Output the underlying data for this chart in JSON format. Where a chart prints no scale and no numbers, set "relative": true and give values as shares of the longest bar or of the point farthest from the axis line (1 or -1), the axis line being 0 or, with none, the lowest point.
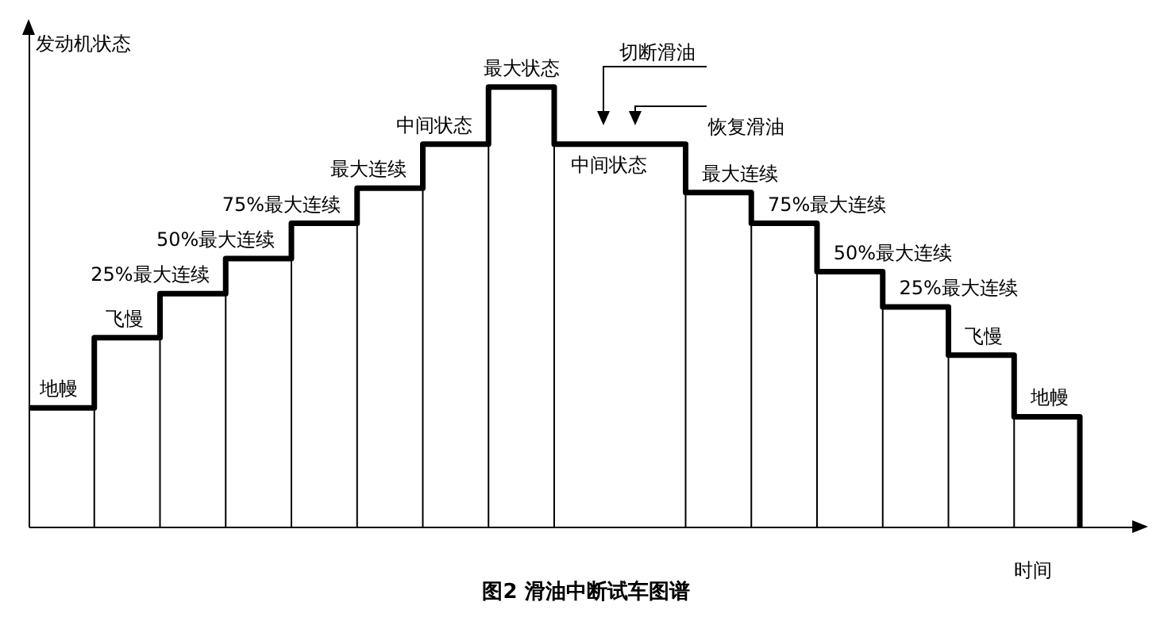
{
  "chart_data": {
    "type": "step",
    "relative": true,
    "grid": "x",
    "title": "图2   滑油中断试车图谱",
    "xlabel": "时间",
    "ylabel": "发动机状态",
    "color": "#000000",
    "categories": [
      null,
      null,
      null,
      null,
      null,
      null,
      null,
      null,
      null,
      null,
      null,
      null,
      null,
      null,
      null,
      null,
      null
    ],
    "values": [
      0.27,
      0.43,
      0.53,
      0.61,
      0.69,
      0.77,
      0.87,
      1,
      0.87,
      0.87,
      0.76,
      0.69,
      0.58,
      0.5,
      0.39,
      0.25,
      0
    ],
    "annotations": [
      {
        "text": "地幔",
        "y": 0.27
      },
      {
        "text": "飞慢",
        "y": 0.43
      },
      {
        "text": "25%最大连续",
        "y": 0.53
      },
      {
        "text": "50%最大连续",
        "y": 0.61
      },
      {
        "text": "75%最大连续",
        "y": 0.69
      },
      {
        "text": "最大连续",
        "y": 0.77
      },
      {
        "text": "中间状态",
        "y": 0.87
      },
      {
        "text": "最大状态",
        "y": 1
      },
      {
        "text": "中间状态",
        "y": 0.87
      },
      {
        "text": "最大连续",
        "y": 0.76
      },
      {
        "text": "75%最大连续",
        "y": 0.69
      },
      {
        "text": "50%最大连续",
        "y": 0.58
      },
      {
        "text": "25%最大连续",
        "y": 0.5
      },
      {
        "text": "飞慢",
        "y": 0.39
      },
      {
        "text": "地幔",
        "y": 0.25
      },
      "切断滑油",
      "恢复滑油"
    ]
  }
}
